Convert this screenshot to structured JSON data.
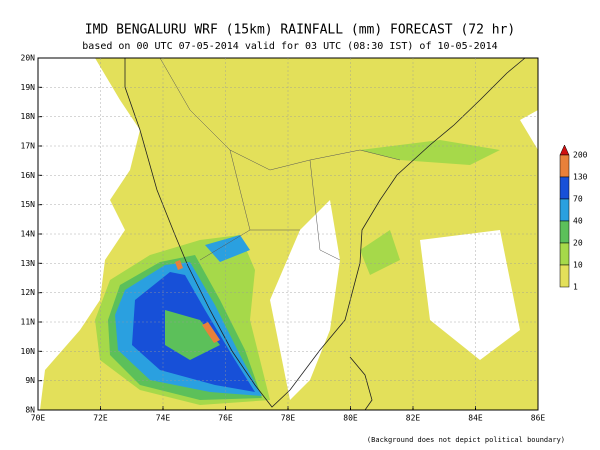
{
  "header": {
    "title": "IMD BENGALURU WRF (15km) RAINFALL (mm) FORECAST (72 hr)",
    "subtitle": "based on 00 UTC  07-05-2014 valid for 03 UTC (08:30 IST) of 10-05-2014"
  },
  "map": {
    "lon_labels": [
      "70E",
      "72E",
      "74E",
      "76E",
      "78E",
      "80E",
      "82E",
      "84E",
      "86E"
    ],
    "lat_labels": [
      "8N",
      "9N",
      "10N",
      "11N",
      "12N",
      "13N",
      "14N",
      "15N",
      "16N",
      "17N",
      "18N",
      "19N",
      "20N"
    ]
  },
  "legend": {
    "levels": [
      "200",
      "130",
      "70",
      "40",
      "20",
      "10",
      "1"
    ]
  },
  "footnote": "(Background does not depict political boundary)"
}
